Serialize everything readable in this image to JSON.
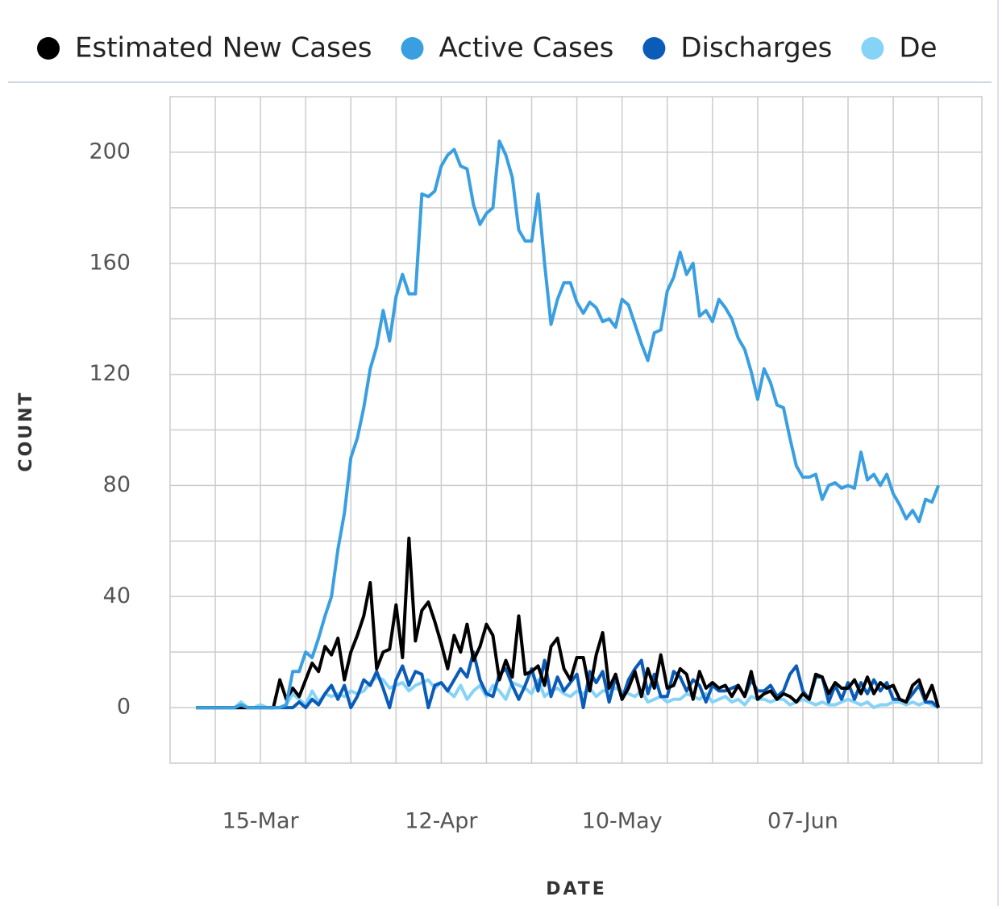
{
  "chart_data": {
    "type": "line",
    "x_label": "DATE",
    "y_label": "COUNT",
    "x": [
      "05-Mar",
      "06-Mar",
      "07-Mar",
      "08-Mar",
      "09-Mar",
      "10-Mar",
      "11-Mar",
      "12-Mar",
      "13-Mar",
      "14-Mar",
      "15-Mar",
      "16-Mar",
      "17-Mar",
      "18-Mar",
      "19-Mar",
      "20-Mar",
      "21-Mar",
      "22-Mar",
      "23-Mar",
      "24-Mar",
      "25-Mar",
      "26-Mar",
      "27-Mar",
      "28-Mar",
      "29-Mar",
      "30-Mar",
      "31-Mar",
      "01-Apr",
      "02-Apr",
      "03-Apr",
      "04-Apr",
      "05-Apr",
      "06-Apr",
      "07-Apr",
      "08-Apr",
      "09-Apr",
      "10-Apr",
      "11-Apr",
      "12-Apr",
      "13-Apr",
      "14-Apr",
      "15-Apr",
      "16-Apr",
      "17-Apr",
      "18-Apr",
      "19-Apr",
      "20-Apr",
      "21-Apr",
      "22-Apr",
      "23-Apr",
      "24-Apr",
      "25-Apr",
      "26-Apr",
      "27-Apr",
      "28-Apr",
      "29-Apr",
      "30-Apr",
      "01-May",
      "02-May",
      "03-May",
      "04-May",
      "05-May",
      "06-May",
      "07-May",
      "08-May",
      "09-May",
      "10-May",
      "11-May",
      "12-May",
      "13-May",
      "14-May",
      "15-May",
      "16-May",
      "17-May",
      "18-May",
      "19-May",
      "20-May",
      "21-May",
      "22-May",
      "23-May",
      "24-May",
      "25-May",
      "26-May",
      "27-May",
      "28-May",
      "29-May",
      "30-May",
      "31-May",
      "01-Jun",
      "02-Jun",
      "03-Jun",
      "04-Jun",
      "05-Jun",
      "06-Jun",
      "07-Jun",
      "08-Jun",
      "09-Jun",
      "10-Jun",
      "11-Jun",
      "12-Jun",
      "13-Jun",
      "14-Jun",
      "15-Jun",
      "16-Jun",
      "17-Jun",
      "18-Jun",
      "19-Jun",
      "20-Jun",
      "21-Jun",
      "22-Jun",
      "23-Jun",
      "24-Jun",
      "25-Jun",
      "26-Jun",
      "27-Jun",
      "28-Jun"
    ],
    "xticks": [
      "15-Mar",
      "12-Apr",
      "10-May",
      "07-Jun"
    ],
    "ylim": [
      -20,
      220
    ],
    "yticks": [
      0,
      40,
      80,
      120,
      160,
      200
    ],
    "y_minor_ticks": [
      20,
      60,
      100,
      140,
      180
    ],
    "grid": true,
    "series": [
      {
        "name": "Estimated New Cases",
        "color": "#000000",
        "values": [
          0,
          0,
          0,
          0,
          0,
          0,
          0,
          0,
          0,
          0,
          0,
          0,
          0,
          10,
          3,
          7,
          4,
          10,
          16,
          13,
          22,
          19,
          25,
          10,
          20,
          26,
          33,
          45,
          14,
          20,
          21,
          37,
          18,
          61,
          24,
          35,
          38,
          31,
          23,
          14,
          26,
          20,
          30,
          17,
          22,
          30,
          26,
          10,
          17,
          11,
          33,
          12,
          13,
          15,
          8,
          22,
          25,
          14,
          10,
          18,
          18,
          6,
          19,
          27,
          7,
          12,
          3,
          7,
          13,
          4,
          14,
          7,
          19,
          7,
          8,
          14,
          12,
          3,
          13,
          7,
          9,
          7,
          8,
          4,
          8,
          4,
          13,
          3,
          5,
          6,
          3,
          5,
          4,
          2,
          5,
          3,
          12,
          11,
          5,
          9,
          7,
          7,
          10,
          5,
          11,
          5,
          9,
          7,
          8,
          3,
          2,
          8,
          10,
          3,
          8,
          0
        ]
      },
      {
        "name": "Active Cases",
        "color": "#3a9fe0",
        "values": [
          0,
          0,
          0,
          0,
          0,
          0,
          0,
          1,
          0,
          0,
          0,
          0,
          0,
          0,
          1,
          13,
          13,
          20,
          18,
          25,
          33,
          40,
          57,
          70,
          90,
          97,
          108,
          122,
          130,
          143,
          132,
          148,
          156,
          149,
          149,
          185,
          184,
          186,
          195,
          199,
          201,
          195,
          194,
          181,
          174,
          178,
          180,
          204,
          199,
          191,
          172,
          168,
          168,
          185,
          160,
          138,
          147,
          153,
          153,
          146,
          142,
          146,
          144,
          139,
          140,
          137,
          147,
          145,
          138,
          131,
          125,
          135,
          136,
          150,
          155,
          164,
          156,
          160,
          141,
          143,
          139,
          147,
          144,
          140,
          133,
          129,
          121,
          111,
          122,
          117,
          109,
          108,
          97,
          87,
          83,
          83,
          84,
          75,
          80,
          81,
          79,
          80,
          79,
          92,
          82,
          84,
          80,
          84,
          77,
          73,
          68,
          71,
          67,
          75,
          74,
          80
        ]
      },
      {
        "name": "Discharges",
        "color": "#0b5cb8",
        "values": [
          0,
          0,
          0,
          0,
          0,
          0,
          0,
          0,
          0,
          0,
          0,
          0,
          0,
          0,
          0,
          0,
          2,
          0,
          3,
          1,
          5,
          8,
          3,
          8,
          0,
          4,
          10,
          8,
          13,
          7,
          0,
          10,
          15,
          8,
          13,
          12,
          0,
          8,
          9,
          6,
          10,
          14,
          11,
          20,
          10,
          5,
          4,
          12,
          14,
          8,
          3,
          8,
          14,
          6,
          17,
          4,
          11,
          6,
          9,
          12,
          0,
          13,
          9,
          13,
          2,
          11,
          3,
          10,
          14,
          17,
          5,
          12,
          4,
          4,
          13,
          11,
          6,
          10,
          8,
          2,
          8,
          6,
          6,
          7,
          8,
          4,
          10,
          6,
          6,
          8,
          4,
          6,
          12,
          15,
          6,
          3,
          11,
          11,
          2,
          8,
          3,
          9,
          3,
          9,
          5,
          10,
          6,
          9,
          3,
          3,
          2,
          5,
          8,
          2,
          2,
          0
        ]
      },
      {
        "name": "De",
        "color": "#86d3f7",
        "values": [
          0,
          0,
          0,
          0,
          0,
          0,
          0,
          2,
          0,
          0,
          1,
          0,
          0,
          0,
          1,
          5,
          3,
          1,
          6,
          2,
          5,
          4,
          5,
          4,
          6,
          5,
          6,
          9,
          11,
          10,
          7,
          8,
          9,
          6,
          8,
          9,
          10,
          7,
          9,
          6,
          4,
          8,
          3,
          6,
          8,
          4,
          8,
          6,
          3,
          9,
          8,
          7,
          5,
          10,
          4,
          6,
          7,
          5,
          4,
          6,
          5,
          7,
          4,
          6,
          6,
          7,
          6,
          5,
          4,
          6,
          2,
          3,
          4,
          2,
          3,
          3,
          5,
          4,
          3,
          5,
          2,
          3,
          4,
          2,
          3,
          1,
          4,
          3,
          3,
          2,
          3,
          3,
          1,
          2,
          3,
          2,
          1,
          2,
          1,
          1,
          2,
          3,
          2,
          1,
          2,
          0,
          1,
          1,
          2,
          2,
          1,
          2,
          1,
          2,
          1,
          0
        ]
      }
    ]
  }
}
